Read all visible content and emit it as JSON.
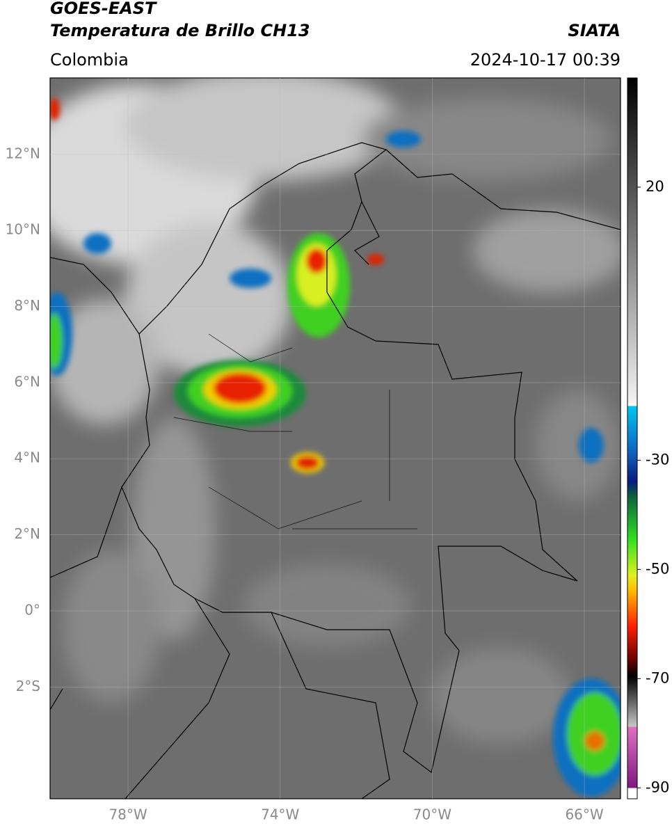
{
  "header": {
    "title": "GOES-EAST",
    "subtitle": "Temperatura de Brillo CH13",
    "region": "Colombia",
    "source": "SIATA",
    "datetime": "2024-10-17 00:39"
  },
  "map": {
    "lonlim": [
      -80.05,
      -65.05
    ],
    "latlim": [
      -4.94,
      14.01
    ],
    "lon_ticks": [
      {
        "value": -78,
        "label": "78°W"
      },
      {
        "value": -74,
        "label": "74°W"
      },
      {
        "value": -70,
        "label": "70°W"
      },
      {
        "value": -66,
        "label": "66°W"
      }
    ],
    "lat_ticks": [
      {
        "value": 12,
        "label": "12°N"
      },
      {
        "value": 10,
        "label": "10°N"
      },
      {
        "value": 8,
        "label": "8°N"
      },
      {
        "value": 6,
        "label": "6°N"
      },
      {
        "value": 4,
        "label": "4°N"
      },
      {
        "value": 2,
        "label": "2°N"
      },
      {
        "value": 0,
        "label": "0°"
      },
      {
        "value": -2,
        "label": "2°S"
      }
    ]
  },
  "colorbar": {
    "lim": [
      -92,
      40
    ],
    "ticks": [
      20,
      -30,
      -50,
      -70,
      -90
    ]
  }
}
